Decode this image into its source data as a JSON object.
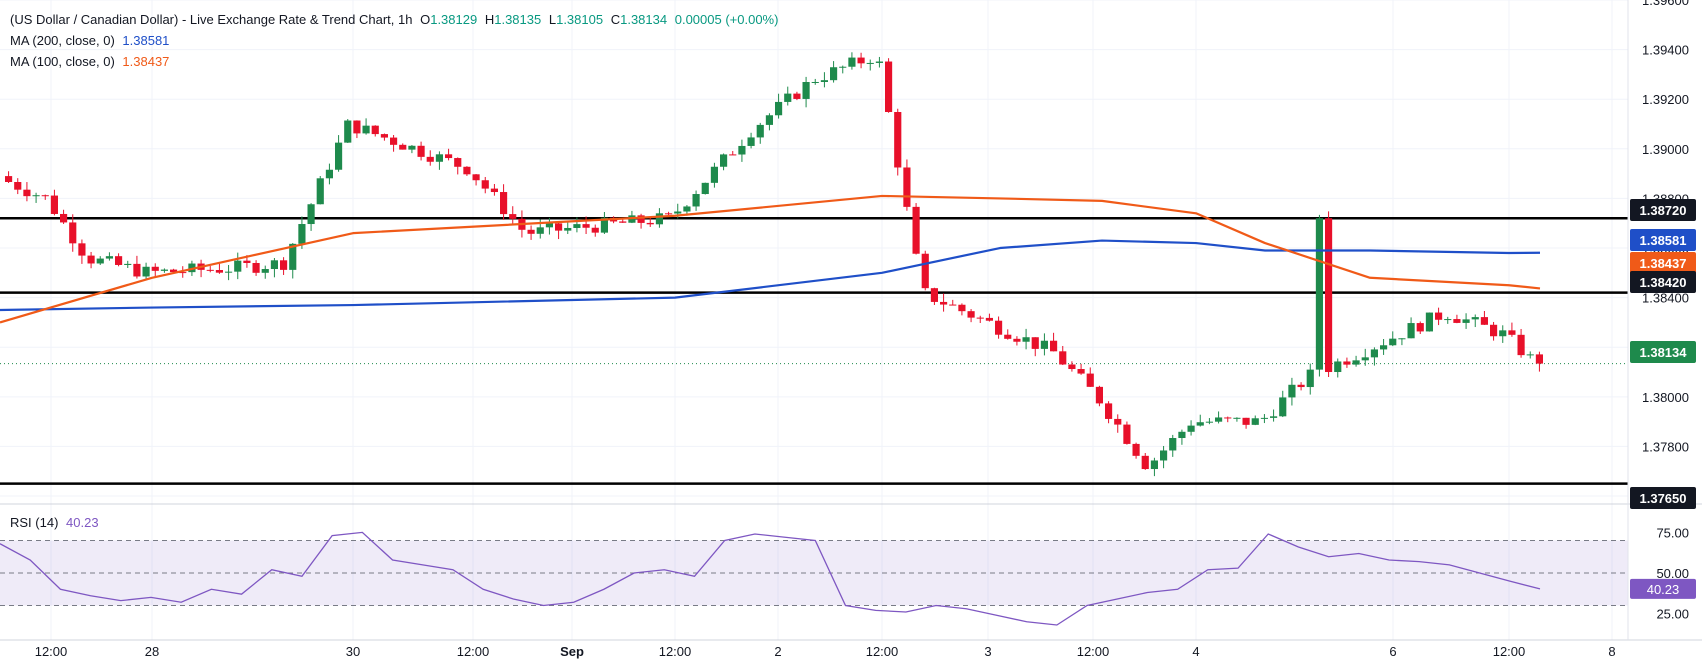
{
  "header": {
    "title": "(US Dollar / Canadian Dollar) - Live Exchange Rate & Trend Chart, 1h",
    "ohlc": {
      "o_label": "O",
      "o": "1.38129",
      "h_label": "H",
      "h": "1.38135",
      "l_label": "L",
      "l": "1.38105",
      "c_label": "C",
      "c": "1.38134",
      "change": "0.00005 (+0.00%)"
    },
    "ma200": {
      "label": "MA (200, close, 0)",
      "value": "1.38581",
      "color": "#1f4fc8"
    },
    "ma100": {
      "label": "MA (100, close, 0)",
      "value": "1.38437",
      "color": "#f05a18"
    }
  },
  "rsi": {
    "label": "RSI (14)",
    "value": "40.23",
    "color": "#7e57c2",
    "levels": [
      75,
      50,
      25
    ],
    "band": [
      30,
      70
    ],
    "ticks": [
      "75.00",
      "50.00",
      "25.00"
    ]
  },
  "price_axis": {
    "ticks": [
      "1.39600",
      "1.39400",
      "1.39200",
      "1.39000",
      "1.38800",
      "1.38600",
      "1.38400",
      "1.38200",
      "1.38000",
      "1.37800",
      "1.37600"
    ]
  },
  "time_axis": {
    "labels": [
      "12:00",
      "28",
      "30",
      "12:00",
      "Sep",
      "12:00",
      "2",
      "12:00",
      "3",
      "12:00",
      "4",
      "6",
      "12:00",
      "8"
    ]
  },
  "price_tags": [
    {
      "text": "1.38720",
      "bg": "#131722"
    },
    {
      "text": "1.38581",
      "bg": "#1f4fc8"
    },
    {
      "text": "1.38437",
      "bg": "#f05a18"
    },
    {
      "text": "1.38420",
      "bg": "#131722"
    },
    {
      "text": "1.38134",
      "bg": "#1e8a4c"
    },
    {
      "text": "1.37650",
      "bg": "#131722"
    }
  ],
  "chart_data": {
    "type": "line",
    "title": "(US Dollar / Canadian Dollar) - Live Exchange Rate & Trend Chart, 1h",
    "ylim": [
      1.3758,
      1.396
    ],
    "grid": true,
    "horizontal_levels": [
      1.3872,
      1.3842,
      1.3765
    ],
    "last_price": 1.38134,
    "series": [
      {
        "name": "MA (200, close, 0)",
        "x": [
          "27 06:00",
          "28 12:00",
          "30 12:00",
          "Sep 1 12:00",
          "2 12:00",
          "3 00:00",
          "3 12:00",
          "4 00:00",
          "4 12:00",
          "5 12:00",
          "6 12:00",
          "6 14:00"
        ],
        "values": [
          1.3835,
          1.3836,
          1.3837,
          1.384,
          1.385,
          1.386,
          1.3863,
          1.3862,
          1.3859,
          1.3859,
          1.3858,
          1.38581
        ]
      },
      {
        "name": "MA (100, close, 0)",
        "x": [
          "27 06:00",
          "28 12:00",
          "30 12:00",
          "Sep 1 12:00",
          "2 12:00",
          "3 00:00",
          "3 12:00",
          "4 00:00",
          "4 12:00",
          "5 12:00",
          "6 12:00",
          "6 14:00"
        ],
        "values": [
          1.383,
          1.3848,
          1.3866,
          1.3873,
          1.3881,
          1.388,
          1.3879,
          1.3874,
          1.3862,
          1.3848,
          1.3845,
          1.38437
        ]
      },
      {
        "name": "Close",
        "x": [
          "27 06:00",
          "27 12:00",
          "28 00:00",
          "28 12:00",
          "29 00:00",
          "29 12:00",
          "30 00:00",
          "30 12:00",
          "Sep 1 00:00",
          "Sep 1 12:00",
          "2 00:00",
          "2 06:00",
          "2 12:00",
          "3 00:00",
          "3 12:00",
          "4 00:00",
          "4 06:00",
          "4 12:00",
          "5 00:00",
          "5 12:00",
          "6 00:00",
          "6 12:00",
          "6 14:00"
        ],
        "values": [
          1.3889,
          1.388,
          1.3856,
          1.385,
          1.3852,
          1.3854,
          1.391,
          1.3892,
          1.3866,
          1.3872,
          1.3908,
          1.3928,
          1.3938,
          1.3842,
          1.3818,
          1.38,
          1.3772,
          1.379,
          1.379,
          1.3808,
          1.3834,
          1.3825,
          1.38134
        ]
      }
    ],
    "rsi_series": {
      "name": "RSI (14)",
      "values": [
        68,
        58,
        40,
        36,
        33,
        35,
        32,
        40,
        37,
        52,
        48,
        73,
        75,
        58,
        55,
        52,
        40,
        34,
        30,
        32,
        40,
        50,
        52,
        48,
        70,
        74,
        72,
        70,
        30,
        27,
        26,
        30,
        28,
        24,
        20,
        18,
        30,
        34,
        38,
        40,
        52,
        53,
        74,
        66,
        60,
        62,
        58,
        57,
        55,
        50,
        45,
        40.23
      ]
    }
  }
}
